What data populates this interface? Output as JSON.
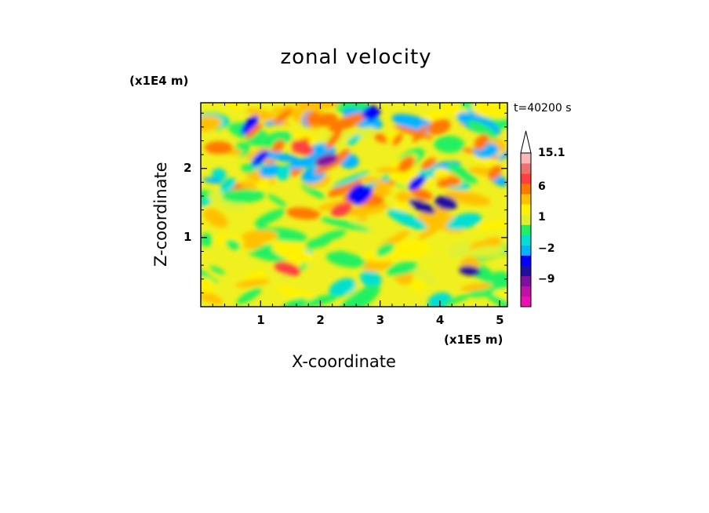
{
  "chart_data": {
    "type": "heatmap",
    "title": "zonal velocity",
    "xlabel": "X-coordinate",
    "ylabel": "Z-coordinate",
    "x_unit": "(x1E5 m)",
    "y_unit": "(x1E4 m)",
    "time_label": "t=40200 s",
    "xlim": [
      0,
      5.13
    ],
    "ylim": [
      0,
      2.95
    ],
    "x_ticks": [
      "1",
      "2",
      "3",
      "4",
      "5"
    ],
    "y_ticks": [
      "1",
      "2"
    ],
    "colorbar": {
      "levels": [
        -15,
        -12,
        -9,
        -6,
        -4,
        -2,
        -1,
        0,
        1,
        2,
        4,
        6,
        9,
        12,
        15.1
      ],
      "labeled": [
        "15.1",
        "6",
        "1",
        "−2",
        "−9"
      ],
      "colors": [
        "#ee10b0",
        "#c010a8",
        "#8010a0",
        "#2010a0",
        "#0000ff",
        "#00b4ff",
        "#00e0d0",
        "#20f060",
        "#e0f030",
        "#fff200",
        "#ffc000",
        "#ff7800",
        "#ff4040",
        "#ee7070",
        "#f8b8b8"
      ],
      "extend_top": true
    },
    "features": [
      {
        "x": 2.1,
        "z": 2.12,
        "value": -9
      },
      {
        "x": 3.7,
        "z": 1.45,
        "value": -6
      },
      {
        "x": 4.1,
        "z": 1.5,
        "value": -6
      },
      {
        "x": 4.5,
        "z": 0.52,
        "value": -6
      },
      {
        "x": 2.35,
        "z": 1.4,
        "value": 9
      },
      {
        "x": 1.7,
        "z": 2.3,
        "value": 9
      },
      {
        "x": 1.45,
        "z": 0.55,
        "value": 9
      },
      {
        "x": 2.1,
        "z": 2.7,
        "value": 6
      },
      {
        "x": 4.15,
        "z": 1.8,
        "value": 6
      },
      {
        "x": 0.3,
        "z": 2.3,
        "value": 6
      }
    ]
  }
}
